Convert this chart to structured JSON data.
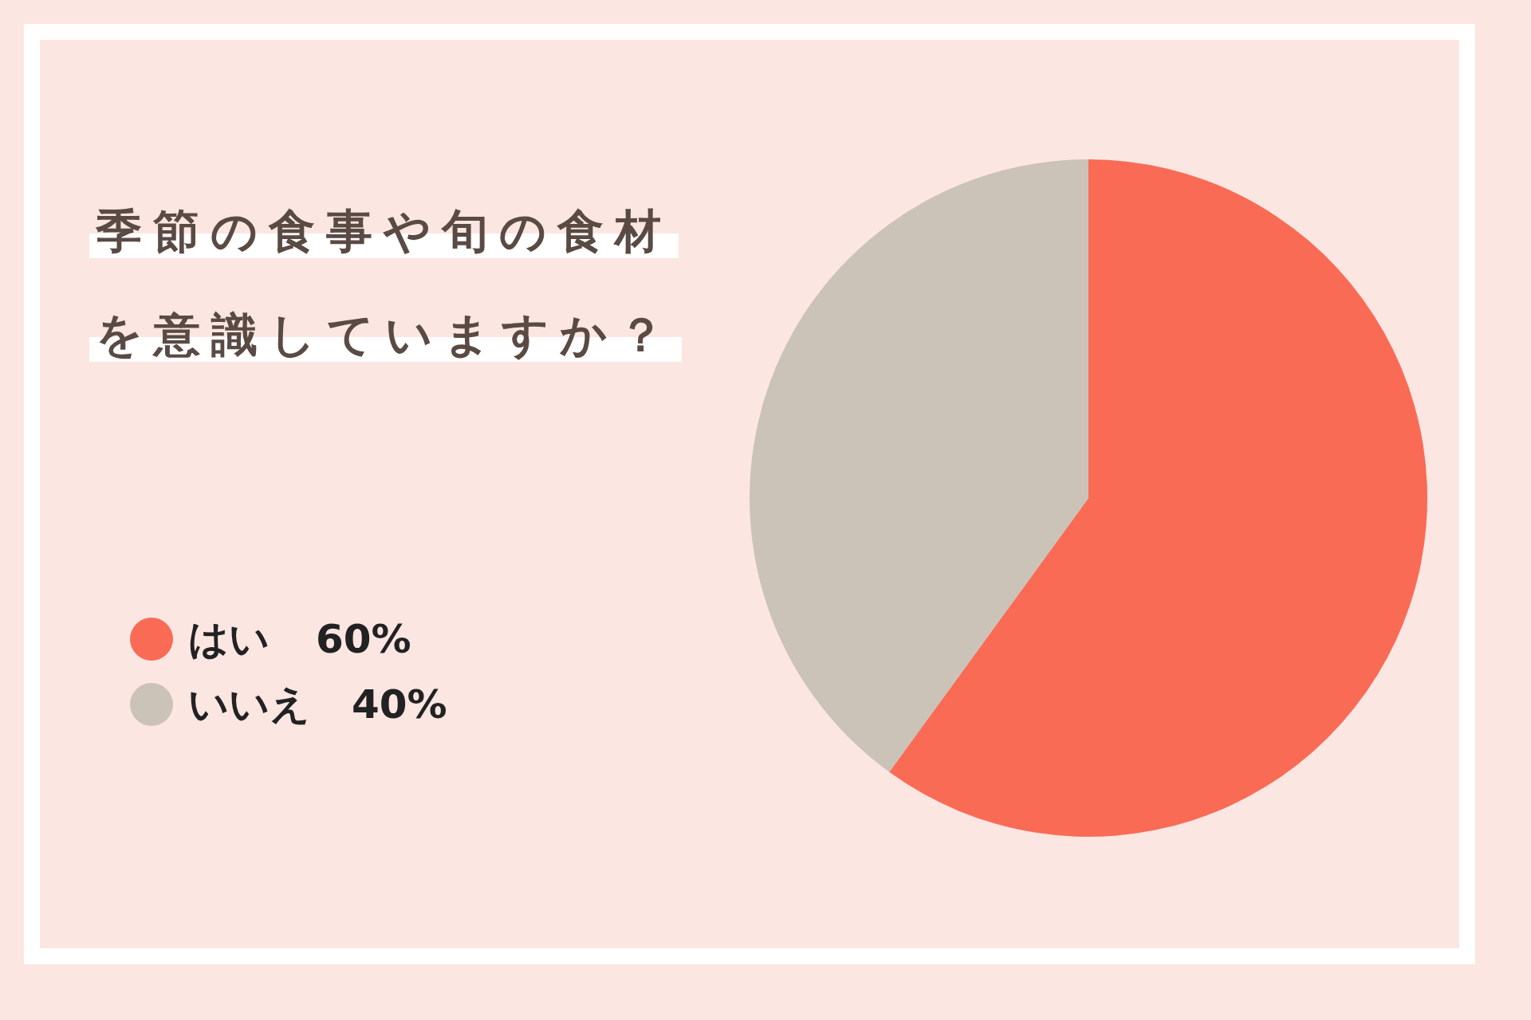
{
  "chart_data": {
    "type": "pie",
    "title": "季節の食事や旬の食材を意識していますか？",
    "categories": [
      "はい",
      "いいえ"
    ],
    "values": [
      60,
      40
    ],
    "colors": [
      "#f96b55",
      "#cbc2b8"
    ],
    "value_labels": [
      "60%",
      "40%"
    ],
    "legend": "left"
  }
}
